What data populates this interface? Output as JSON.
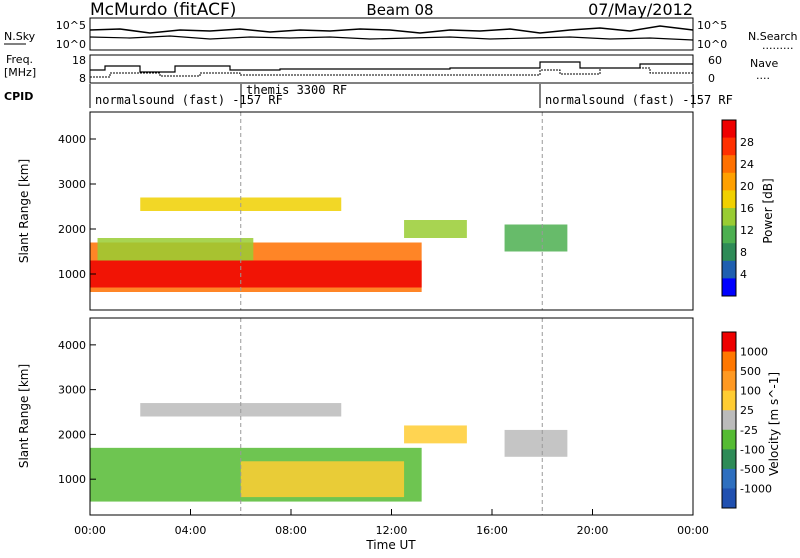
{
  "header": {
    "station": "McMurdo (fitACF)",
    "beam": "Beam 08",
    "date": "07/May/2012"
  },
  "noise_panel": {
    "left_label": "N.Sky",
    "left_ticks": [
      "10^5",
      "10^0"
    ],
    "right_label": "N.Search",
    "right_ticks": [
      "10^5",
      "10^0"
    ]
  },
  "freq_panel": {
    "left_label_1": "Freq.",
    "left_label_2": "[MHz]",
    "left_ticks": [
      "18",
      "8"
    ],
    "right_label": "Nave",
    "right_ticks": [
      "60",
      "0"
    ]
  },
  "cpid": {
    "label": "CPID",
    "segments": [
      "normalsound (fast) -157 RF",
      "themis 3300 RF",
      "normalsound (fast) -157 RF"
    ]
  },
  "power_colorbar": {
    "label": "Power [dB]",
    "ticks": [
      "28",
      "24",
      "20",
      "16",
      "12",
      "8",
      "4"
    ],
    "colors": [
      "#0000ff",
      "#1f5fb0",
      "#2e8b57",
      "#4caf50",
      "#99cc33",
      "#f0d000",
      "#ffa000",
      "#ff7000",
      "#ff3000",
      "#ee0000"
    ]
  },
  "velocity_colorbar": {
    "label": "Velocity [m s^-1]",
    "ticks": [
      "1000",
      "500",
      "100",
      "25",
      "-25",
      "-100",
      "-500",
      "-1000"
    ],
    "colors": [
      "#2050b0",
      "#2e6fbf",
      "#2e8b57",
      "#55bb33",
      "#bbbbbb",
      "#ffcc33",
      "#ff9922",
      "#ff7700",
      "#ee0000"
    ]
  },
  "x_axis": {
    "label": "Time UT",
    "ticks": [
      "00:00",
      "04:00",
      "08:00",
      "12:00",
      "16:00",
      "20:00",
      "00:00"
    ]
  },
  "chart_data": {
    "type": "heatmap",
    "title": "McMurdo (fitACF) Beam 08 07/May/2012",
    "xlabel": "Time UT",
    "ylabel": "Slant Range [km]",
    "xlim": [
      0,
      24
    ],
    "ylim": [
      200,
      4600
    ],
    "yticks": [
      1000,
      2000,
      3000,
      4000
    ],
    "panels": [
      {
        "name": "power",
        "label": "Power [dB]",
        "colorbar_range": [
          0,
          32
        ],
        "regions": [
          {
            "t0": 0.0,
            "t1": 13.2,
            "r0": 600,
            "r1": 1700,
            "value": 24
          },
          {
            "t0": 0.0,
            "t1": 13.2,
            "r0": 700,
            "r1": 1300,
            "value": 30
          },
          {
            "t0": 0.3,
            "t1": 6.5,
            "r0": 1300,
            "r1": 1800,
            "value": 14
          },
          {
            "t0": 2.0,
            "t1": 10.0,
            "r0": 2400,
            "r1": 2700,
            "value": 16
          },
          {
            "t0": 12.5,
            "t1": 15.0,
            "r0": 1800,
            "r1": 2200,
            "value": 14
          },
          {
            "t0": 16.5,
            "t1": 19.0,
            "r0": 1500,
            "r1": 2100,
            "value": 12
          }
        ]
      },
      {
        "name": "velocity",
        "label": "Velocity [m s^-1]",
        "colorbar_range": [
          -1000,
          1000
        ],
        "regions": [
          {
            "t0": 0.0,
            "t1": 13.2,
            "r0": 500,
            "r1": 1700,
            "value": -300
          },
          {
            "t0": 6.0,
            "t1": 12.5,
            "r0": 600,
            "r1": 1400,
            "value": 150
          },
          {
            "t0": 2.0,
            "t1": 10.0,
            "r0": 2400,
            "r1": 2700,
            "value": 80
          },
          {
            "t0": 12.5,
            "t1": 15.0,
            "r0": 1800,
            "r1": 2200,
            "value": 120
          },
          {
            "t0": 16.5,
            "t1": 19.0,
            "r0": 1500,
            "r1": 2100,
            "value": 50
          }
        ]
      }
    ]
  }
}
